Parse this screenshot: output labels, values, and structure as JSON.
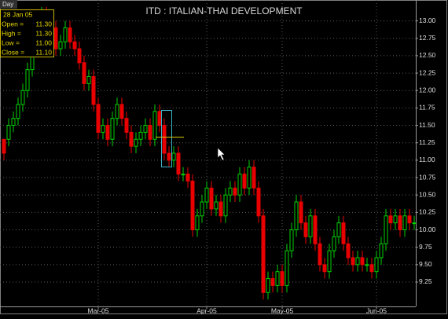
{
  "chart_data": {
    "type": "candlestick",
    "title": "ITD : ITALIAN-THAI DEVELOPMENT",
    "period": "Day",
    "tooltip": {
      "date": "28 Jan 05",
      "rows": [
        {
          "label": "Open =",
          "value": "11.30"
        },
        {
          "label": "High =",
          "value": "11.30"
        },
        {
          "label": "Low =",
          "value": "11.00"
        },
        {
          "label": "Close =",
          "value": "11.10"
        }
      ]
    },
    "up_color": "#00d000",
    "down_color": "#e80000",
    "grid": true,
    "ylim": [
      8.9,
      13.3
    ],
    "yticks": [
      {
        "value": 9.5,
        "label": "9.50"
      },
      9.25,
      9.75,
      {
        "value": 10,
        "label": "10.00"
      },
      10.25,
      {
        "value": 10.5,
        "label": "10.50"
      },
      10.75,
      {
        "value": 11,
        "label": "11.00"
      },
      11.25,
      {
        "value": 11.5,
        "label": "11.50"
      },
      11.75,
      {
        "value": 12,
        "label": "12.00"
      },
      12.25,
      {
        "value": 12.5,
        "label": "12.50"
      },
      12.75,
      {
        "value": 13,
        "label": "13.00"
      }
    ],
    "categories": [
      null,
      null,
      null,
      null,
      null,
      null,
      null,
      null,
      null,
      null,
      null,
      null,
      null,
      null,
      null,
      null,
      null,
      null,
      null,
      null,
      "Mar-05",
      null,
      null,
      null,
      null,
      null,
      null,
      null,
      null,
      null,
      null,
      null,
      null,
      null,
      null,
      null,
      null,
      null,
      null,
      null,
      null,
      null,
      null,
      "Apr-05",
      null,
      null,
      null,
      null,
      null,
      null,
      null,
      null,
      null,
      null,
      null,
      null,
      null,
      null,
      null,
      "May-05",
      null,
      null,
      null,
      null,
      null,
      null,
      null,
      null,
      null,
      null,
      null,
      null,
      null,
      null,
      null,
      null,
      null,
      null,
      null,
      "Jun-05",
      null,
      null,
      null,
      null,
      null,
      null,
      null,
      null
    ],
    "open": [
      11.3,
      11.3,
      11.5,
      11.6,
      11.8,
      12.0,
      12.3,
      12.6,
      12.8,
      13.1,
      13.0,
      12.9,
      12.6,
      12.7,
      12.9,
      12.7,
      12.6,
      12.4,
      12.1,
      12.2,
      11.8,
      11.4,
      11.5,
      11.3,
      11.6,
      11.8,
      11.6,
      11.4,
      11.2,
      11.3,
      11.4,
      11.5,
      11.3,
      11.7,
      11.5,
      11.1,
      11.0,
      11.1,
      10.8,
      10.8,
      10.7,
      10.0,
      10.2,
      10.4,
      10.6,
      10.3,
      10.4,
      10.2,
      10.5,
      10.6,
      10.5,
      10.8,
      10.6,
      10.9,
      10.6,
      10.2,
      9.1,
      9.3,
      9.2,
      9.4,
      9.2,
      9.7,
      10.0,
      10.4,
      10.1,
      9.9,
      10.2,
      9.8,
      9.5,
      9.4,
      9.7,
      9.9,
      10.1,
      9.8,
      9.6,
      9.5,
      9.6,
      9.5,
      9.5,
      9.4,
      9.6,
      9.8,
      10.2,
      10.1,
      10.2,
      10.0,
      10.2,
      10.1
    ],
    "high": [
      11.3,
      11.6,
      11.7,
      11.9,
      12.1,
      12.4,
      12.7,
      12.9,
      13.2,
      13.2,
      13.1,
      13.0,
      12.8,
      13.0,
      13.0,
      12.8,
      12.7,
      12.5,
      12.3,
      12.3,
      11.9,
      11.6,
      11.6,
      11.7,
      11.9,
      11.9,
      11.7,
      11.5,
      11.4,
      11.5,
      11.6,
      11.6,
      11.8,
      11.8,
      11.6,
      11.2,
      11.2,
      11.2,
      10.9,
      10.9,
      10.8,
      10.3,
      10.5,
      10.7,
      10.7,
      10.5,
      10.5,
      10.6,
      10.7,
      10.7,
      10.9,
      10.9,
      11.0,
      11.0,
      10.7,
      10.3,
      9.4,
      9.4,
      9.5,
      9.5,
      9.8,
      10.1,
      10.5,
      10.5,
      10.2,
      10.3,
      10.3,
      9.9,
      9.6,
      9.8,
      10.0,
      10.2,
      10.2,
      9.9,
      9.7,
      9.7,
      9.7,
      9.6,
      9.6,
      9.7,
      9.9,
      10.3,
      10.3,
      10.3,
      10.3,
      10.3,
      10.3,
      10.2
    ],
    "low": [
      11.0,
      11.2,
      11.4,
      11.5,
      11.7,
      11.9,
      12.2,
      12.5,
      12.7,
      12.9,
      12.8,
      12.5,
      12.5,
      12.6,
      12.6,
      12.5,
      12.3,
      12.0,
      12.0,
      11.7,
      11.3,
      11.3,
      11.2,
      11.2,
      11.5,
      11.5,
      11.3,
      11.1,
      11.1,
      11.2,
      11.3,
      11.2,
      11.2,
      11.4,
      11.0,
      10.9,
      10.9,
      10.7,
      10.7,
      10.6,
      9.9,
      9.9,
      10.1,
      10.3,
      10.2,
      10.2,
      10.1,
      10.1,
      10.4,
      10.4,
      10.4,
      10.5,
      10.5,
      10.5,
      10.1,
      9.0,
      9.0,
      9.1,
      9.1,
      9.1,
      9.1,
      9.6,
      9.9,
      10.0,
      9.8,
      9.8,
      9.7,
      9.4,
      9.3,
      9.3,
      9.6,
      9.8,
      9.7,
      9.5,
      9.4,
      9.4,
      9.4,
      9.4,
      9.3,
      9.3,
      9.5,
      9.7,
      10.0,
      10.0,
      9.9,
      9.9,
      10.0,
      10.0
    ],
    "close": [
      11.1,
      11.5,
      11.6,
      11.8,
      12.0,
      12.3,
      12.6,
      12.8,
      13.1,
      13.0,
      12.9,
      12.6,
      12.7,
      12.9,
      12.7,
      12.6,
      12.4,
      12.1,
      12.2,
      11.8,
      11.4,
      11.5,
      11.3,
      11.6,
      11.8,
      11.6,
      11.4,
      11.2,
      11.3,
      11.4,
      11.5,
      11.3,
      11.7,
      11.5,
      11.1,
      11.0,
      11.1,
      10.8,
      10.8,
      10.7,
      10.0,
      10.2,
      10.4,
      10.6,
      10.3,
      10.4,
      10.2,
      10.5,
      10.6,
      10.5,
      10.8,
      10.6,
      10.9,
      10.6,
      10.2,
      9.1,
      9.3,
      9.2,
      9.4,
      9.2,
      9.7,
      10.0,
      10.4,
      10.1,
      9.9,
      10.2,
      9.8,
      9.5,
      9.4,
      9.7,
      9.9,
      10.1,
      9.8,
      9.6,
      9.5,
      9.6,
      9.5,
      9.5,
      9.4,
      9.6,
      9.8,
      10.2,
      10.1,
      10.2,
      10.0,
      10.2,
      10.1,
      10.1
    ]
  }
}
